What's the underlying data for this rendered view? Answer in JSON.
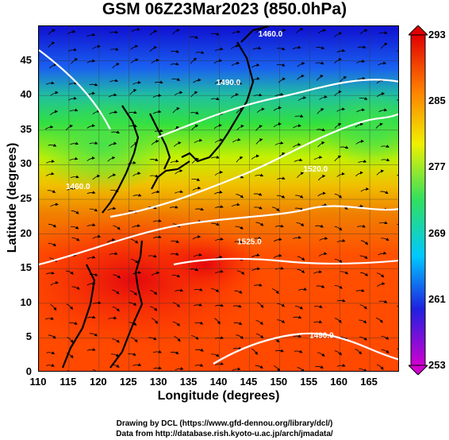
{
  "title": "GSM 06Z23Mar2023 (850.0hPa)",
  "axes": {
    "xlabel": "Longitude (degrees)",
    "ylabel": "Latitude  (degrees)",
    "xticks": [
      "110",
      "115",
      "120",
      "125",
      "130",
      "135",
      "140",
      "145",
      "150",
      "155",
      "160",
      "165"
    ],
    "yticks": [
      "0",
      "5",
      "10",
      "15",
      "20",
      "25",
      "30",
      "35",
      "40",
      "45"
    ],
    "xlim": [
      110,
      170
    ],
    "ylim": [
      0,
      50
    ]
  },
  "colorbar": {
    "ticks": [
      "253",
      "261",
      "269",
      "277",
      "285",
      "293"
    ],
    "range": [
      253,
      293
    ],
    "colors": [
      "#d000d0",
      "#2020e0",
      "#00c8ff",
      "#30e060",
      "#f0f000",
      "#ff8000",
      "#e00000"
    ]
  },
  "contours": [
    {
      "label": "1460.0",
      "lon": 148.5,
      "lat": 48.5
    },
    {
      "label": "1490.0",
      "lon": 141.5,
      "lat": 41.5
    },
    {
      "label": "1520.0",
      "lon": 156.0,
      "lat": 29.0
    },
    {
      "label": "1460.0",
      "lon": 116.5,
      "lat": 26.5
    },
    {
      "label": "1525.0",
      "lon": 145.0,
      "lat": 18.5
    },
    {
      "label": "1490.0",
      "lon": 157.0,
      "lat": 5.0
    }
  ],
  "credits": {
    "line1": "Drawing by DCL (https://www.gfd-dennou.org/library/dcl/)",
    "line2": "Data from http://database.rish.kyoto-u.ac.jp/arch/jmadata/"
  }
}
